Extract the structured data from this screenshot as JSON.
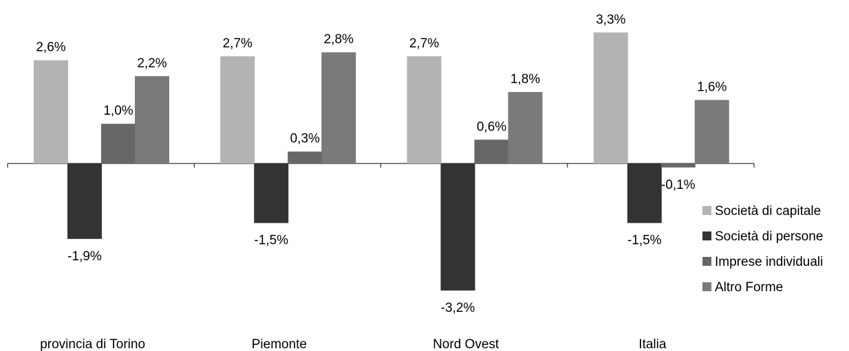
{
  "chart_data": {
    "type": "bar",
    "categories": [
      "provincia di Torino",
      "Piemonte",
      "Nord Ovest",
      "Italia"
    ],
    "series": [
      {
        "name": "Società di capitale",
        "values": [
          2.6,
          2.7,
          2.7,
          3.3
        ],
        "labels": [
          "2,6%",
          "2,7%",
          "2,7%",
          "3,3%"
        ]
      },
      {
        "name": "Società di persone",
        "values": [
          -1.9,
          -1.5,
          -3.2,
          -1.5
        ],
        "labels": [
          "-1,9%",
          "-1,5%",
          "-3,2%",
          "-1,5%"
        ]
      },
      {
        "name": "Imprese individuali",
        "values": [
          1.0,
          0.3,
          0.6,
          -0.1
        ],
        "labels": [
          "1,0%",
          "0,3%",
          "0,6%",
          "-0,1%"
        ]
      },
      {
        "name": "Altro Forme",
        "values": [
          2.2,
          2.8,
          1.8,
          1.6
        ],
        "labels": [
          "2,2%",
          "2,8%",
          "1,8%",
          "1,6%"
        ]
      }
    ],
    "ylim": [
      -3.2,
      3.3
    ],
    "grid": false,
    "legend_position": "right",
    "colors": [
      "#b3b3b3",
      "#333333",
      "#676767",
      "#7a7a7a"
    ]
  }
}
